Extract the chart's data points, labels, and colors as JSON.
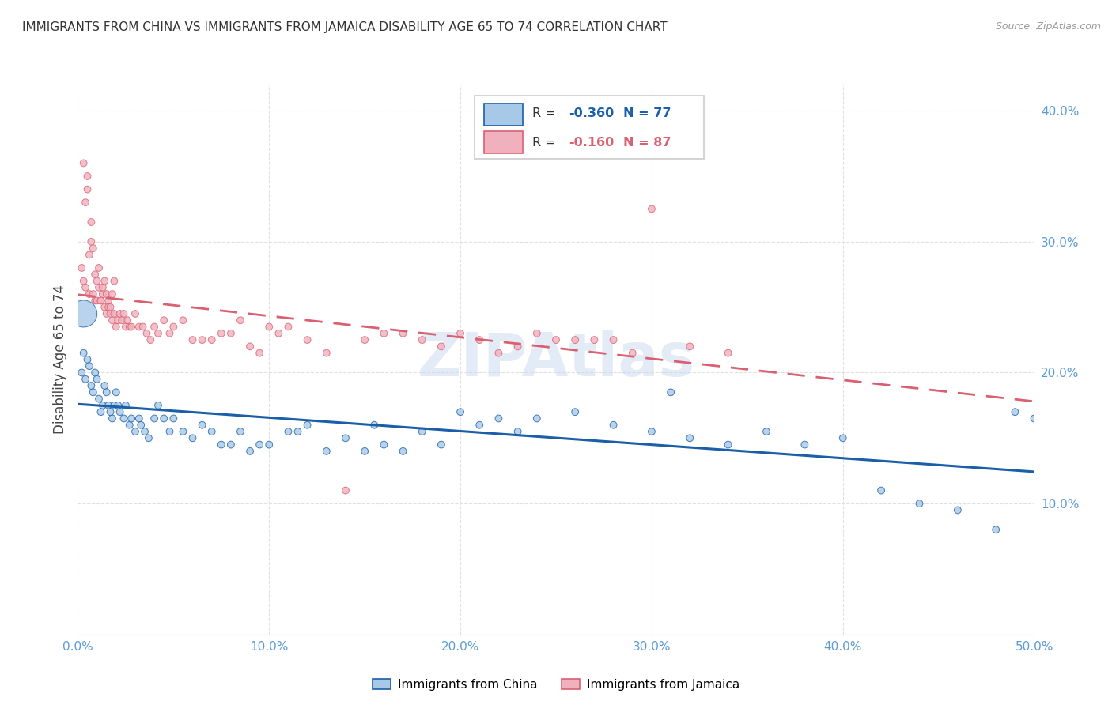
{
  "title": "IMMIGRANTS FROM CHINA VS IMMIGRANTS FROM JAMAICA DISABILITY AGE 65 TO 74 CORRELATION CHART",
  "source": "Source: ZipAtlas.com",
  "ylabel": "Disability Age 65 to 74",
  "xlim": [
    0.0,
    0.5
  ],
  "ylim": [
    0.0,
    0.42
  ],
  "xticks": [
    0.0,
    0.1,
    0.2,
    0.3,
    0.4,
    0.5
  ],
  "yticks": [
    0.1,
    0.2,
    0.3,
    0.4
  ],
  "xticklabels": [
    "0.0%",
    "10.0%",
    "20.0%",
    "30.0%",
    "40.0%",
    "50.0%"
  ],
  "yticklabels": [
    "10.0%",
    "20.0%",
    "30.0%",
    "40.0%"
  ],
  "china_color": "#a8c8e8",
  "jamaica_color": "#f0b0be",
  "china_line_color": "#1a5fa8",
  "jamaica_line_color": "#d96070",
  "china_R": -0.36,
  "china_N": 77,
  "jamaica_R": -0.16,
  "jamaica_N": 87,
  "legend_label_china": "Immigrants from China",
  "legend_label_jamaica": "Immigrants from Jamaica",
  "background_color": "#ffffff",
  "grid_color": "#e0e0e0",
  "axis_tick_color": "#5b9bd5",
  "china_scatter_x": [
    0.002,
    0.003,
    0.004,
    0.005,
    0.006,
    0.007,
    0.008,
    0.009,
    0.01,
    0.011,
    0.012,
    0.013,
    0.014,
    0.015,
    0.016,
    0.017,
    0.018,
    0.019,
    0.02,
    0.021,
    0.022,
    0.024,
    0.025,
    0.027,
    0.028,
    0.03,
    0.032,
    0.033,
    0.035,
    0.037,
    0.04,
    0.042,
    0.045,
    0.048,
    0.05,
    0.055,
    0.06,
    0.065,
    0.07,
    0.075,
    0.08,
    0.085,
    0.09,
    0.095,
    0.1,
    0.11,
    0.115,
    0.12,
    0.13,
    0.14,
    0.15,
    0.155,
    0.16,
    0.17,
    0.18,
    0.19,
    0.2,
    0.21,
    0.22,
    0.23,
    0.24,
    0.26,
    0.28,
    0.3,
    0.31,
    0.32,
    0.34,
    0.36,
    0.38,
    0.4,
    0.42,
    0.44,
    0.46,
    0.48,
    0.49,
    0.5,
    0.003
  ],
  "china_scatter_y": [
    0.2,
    0.215,
    0.195,
    0.21,
    0.205,
    0.19,
    0.185,
    0.2,
    0.195,
    0.18,
    0.17,
    0.175,
    0.19,
    0.185,
    0.175,
    0.17,
    0.165,
    0.175,
    0.185,
    0.175,
    0.17,
    0.165,
    0.175,
    0.16,
    0.165,
    0.155,
    0.165,
    0.16,
    0.155,
    0.15,
    0.165,
    0.175,
    0.165,
    0.155,
    0.165,
    0.155,
    0.15,
    0.16,
    0.155,
    0.145,
    0.145,
    0.155,
    0.14,
    0.145,
    0.145,
    0.155,
    0.155,
    0.16,
    0.14,
    0.15,
    0.14,
    0.16,
    0.145,
    0.14,
    0.155,
    0.145,
    0.17,
    0.16,
    0.165,
    0.155,
    0.165,
    0.17,
    0.16,
    0.155,
    0.185,
    0.15,
    0.145,
    0.155,
    0.145,
    0.15,
    0.11,
    0.1,
    0.095,
    0.08,
    0.17,
    0.165,
    0.245
  ],
  "china_scatter_size": [
    40,
    40,
    40,
    40,
    40,
    40,
    40,
    40,
    40,
    40,
    40,
    40,
    40,
    40,
    40,
    40,
    40,
    40,
    40,
    40,
    40,
    40,
    40,
    40,
    40,
    40,
    40,
    40,
    40,
    40,
    40,
    40,
    40,
    40,
    40,
    40,
    40,
    40,
    40,
    40,
    40,
    40,
    40,
    40,
    40,
    40,
    40,
    40,
    40,
    40,
    40,
    40,
    40,
    40,
    40,
    40,
    40,
    40,
    40,
    40,
    40,
    40,
    40,
    40,
    40,
    40,
    40,
    40,
    40,
    40,
    40,
    40,
    40,
    40,
    40,
    40,
    600
  ],
  "jamaica_scatter_x": [
    0.002,
    0.003,
    0.004,
    0.005,
    0.006,
    0.007,
    0.008,
    0.009,
    0.01,
    0.011,
    0.012,
    0.013,
    0.014,
    0.015,
    0.016,
    0.017,
    0.018,
    0.019,
    0.02,
    0.021,
    0.022,
    0.023,
    0.024,
    0.025,
    0.026,
    0.027,
    0.028,
    0.03,
    0.032,
    0.034,
    0.036,
    0.038,
    0.04,
    0.042,
    0.045,
    0.048,
    0.05,
    0.055,
    0.06,
    0.065,
    0.07,
    0.075,
    0.08,
    0.085,
    0.09,
    0.095,
    0.1,
    0.105,
    0.11,
    0.12,
    0.13,
    0.14,
    0.15,
    0.16,
    0.17,
    0.18,
    0.19,
    0.2,
    0.21,
    0.22,
    0.23,
    0.24,
    0.25,
    0.26,
    0.27,
    0.28,
    0.29,
    0.3,
    0.32,
    0.34,
    0.003,
    0.004,
    0.005,
    0.006,
    0.007,
    0.008,
    0.009,
    0.01,
    0.011,
    0.012,
    0.013,
    0.014,
    0.015,
    0.016,
    0.017,
    0.018,
    0.019
  ],
  "jamaica_scatter_y": [
    0.28,
    0.27,
    0.265,
    0.35,
    0.26,
    0.3,
    0.26,
    0.255,
    0.255,
    0.265,
    0.255,
    0.26,
    0.25,
    0.245,
    0.25,
    0.245,
    0.24,
    0.245,
    0.235,
    0.24,
    0.245,
    0.24,
    0.245,
    0.235,
    0.24,
    0.235,
    0.235,
    0.245,
    0.235,
    0.235,
    0.23,
    0.225,
    0.235,
    0.23,
    0.24,
    0.23,
    0.235,
    0.24,
    0.225,
    0.225,
    0.225,
    0.23,
    0.23,
    0.24,
    0.22,
    0.215,
    0.235,
    0.23,
    0.235,
    0.225,
    0.215,
    0.11,
    0.225,
    0.23,
    0.23,
    0.225,
    0.22,
    0.23,
    0.225,
    0.215,
    0.22,
    0.23,
    0.225,
    0.225,
    0.225,
    0.225,
    0.215,
    0.325,
    0.22,
    0.215,
    0.36,
    0.33,
    0.34,
    0.29,
    0.315,
    0.295,
    0.275,
    0.27,
    0.28,
    0.255,
    0.265,
    0.27,
    0.26,
    0.255,
    0.25,
    0.26,
    0.27
  ],
  "jamaica_scatter_size": [
    40,
    40,
    40,
    40,
    40,
    40,
    40,
    40,
    40,
    40,
    40,
    40,
    40,
    40,
    40,
    40,
    40,
    40,
    40,
    40,
    40,
    40,
    40,
    40,
    40,
    40,
    40,
    40,
    40,
    40,
    40,
    40,
    40,
    40,
    40,
    40,
    40,
    40,
    40,
    40,
    40,
    40,
    40,
    40,
    40,
    40,
    40,
    40,
    40,
    40,
    40,
    40,
    40,
    40,
    40,
    40,
    40,
    40,
    40,
    40,
    40,
    40,
    40,
    40,
    40,
    40,
    40,
    40,
    40,
    40,
    40,
    40,
    40,
    40,
    40,
    40,
    40,
    40,
    40,
    40,
    40,
    40,
    40,
    40,
    40,
    40,
    40
  ]
}
